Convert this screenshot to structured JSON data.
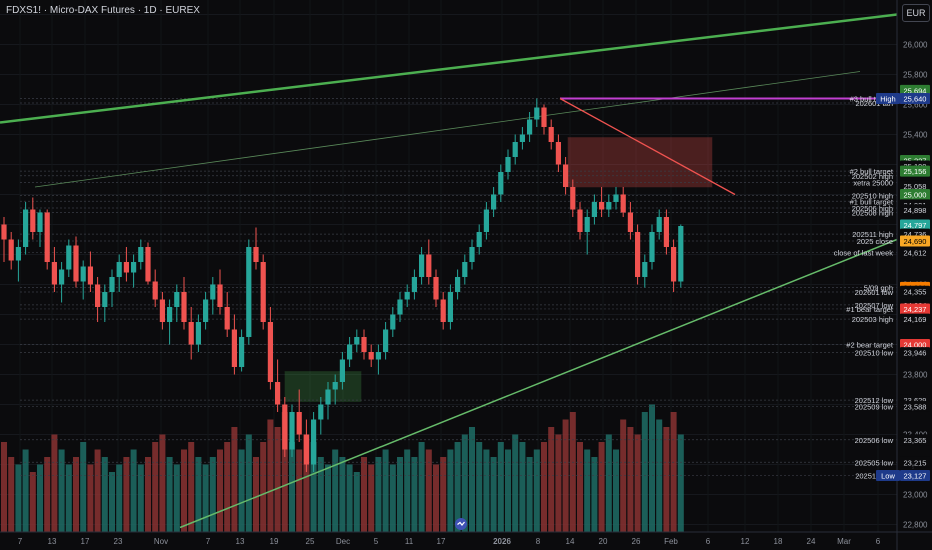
{
  "header": {
    "title": "FDXS1! · Micro-DAX Futures · 1D · EUREX",
    "currency": "EUR"
  },
  "price_axis": {
    "ticks": [
      "26,200",
      "26,000",
      "25,800",
      "25,600",
      "25,400",
      "25,200",
      "25,000",
      "24,800",
      "24,600",
      "24,400",
      "24,200",
      "24,000",
      "23,800",
      "23,600",
      "23,400",
      "23,200",
      "23,000",
      "22,800"
    ],
    "tick_values": [
      26200,
      26000,
      25800,
      25600,
      25400,
      25200,
      25000,
      24800,
      24600,
      24400,
      24200,
      24000,
      23800,
      23600,
      23400,
      23200,
      23000,
      22800
    ]
  },
  "time_axis": {
    "labels": [
      "7",
      "13",
      "17",
      "23",
      "Nov",
      "7",
      "13",
      "19",
      "25",
      "Dec",
      "5",
      "11",
      "17",
      "2026",
      "8",
      "14",
      "20",
      "26",
      "Feb",
      "6",
      "12",
      "18",
      "24",
      "Mar",
      "6"
    ]
  },
  "badges": [
    {
      "text": "25,694",
      "value": 25694,
      "bg": "#2e7d32",
      "fg": "#ffffff"
    },
    {
      "text": "25,640",
      "value": 25640,
      "bg": "#c2185b",
      "fg": "#ffffff"
    },
    {
      "text": "High",
      "value": 25640,
      "bg": "#1e3a8a",
      "fg": "#ffffff"
    },
    {
      "text": "25,640",
      "value": 25640,
      "bg": "#1e3a8a",
      "fg": "#ffffff"
    },
    {
      "text": "25,227",
      "value": 25227,
      "bg": "#2e7d32",
      "fg": "#ffffff"
    },
    {
      "text": "25,190",
      "value": 25190,
      "bg": "#0b0b0d",
      "fg": "#d1d4dc"
    },
    {
      "text": "25,156",
      "value": 25156,
      "bg": "#2e7d32",
      "fg": "#ffffff"
    },
    {
      "text": "25,058",
      "value": 25058,
      "bg": "#0b0b0d",
      "fg": "#d1d4dc"
    },
    {
      "text": "25,000",
      "value": 25000,
      "bg": "#2e7d32",
      "fg": "#ffffff"
    },
    {
      "text": "24,931",
      "value": 24931,
      "bg": "#0b0b0d",
      "fg": "#d1d4dc"
    },
    {
      "text": "24,898",
      "value": 24898,
      "bg": "#0b0b0d",
      "fg": "#d1d4dc"
    },
    {
      "text": "24,797",
      "value": 24797,
      "bg": "#26a69a",
      "fg": "#ffffff"
    },
    {
      "text": "24,736",
      "value": 24736,
      "bg": "#0b0b0d",
      "fg": "#d1d4dc"
    },
    {
      "text": "24,690",
      "value": 24690,
      "bg": "#f9a825",
      "fg": "#000000"
    },
    {
      "text": "24,612",
      "value": 24612,
      "bg": "#0b0b0d",
      "fg": "#d1d4dc"
    },
    {
      "text": "24,381",
      "value": 24381,
      "bg": "#f57c00",
      "fg": "#000000"
    },
    {
      "text": "24,355",
      "value": 24355,
      "bg": "#0b0b0d",
      "fg": "#d1d4dc"
    },
    {
      "text": "24,264",
      "value": 24264,
      "bg": "#0b0b0d",
      "fg": "#d1d4dc"
    },
    {
      "text": "24,237",
      "value": 24237,
      "bg": "#e53935",
      "fg": "#ffffff"
    },
    {
      "text": "24,169",
      "value": 24169,
      "bg": "#0b0b0d",
      "fg": "#d1d4dc"
    },
    {
      "text": "24,000",
      "value": 24000,
      "bg": "#e53935",
      "fg": "#ffffff"
    },
    {
      "text": "23,946",
      "value": 23946,
      "bg": "#0b0b0d",
      "fg": "#d1d4dc"
    },
    {
      "text": "23,629",
      "value": 23629,
      "bg": "#0b0b0d",
      "fg": "#d1d4dc"
    },
    {
      "text": "23,588",
      "value": 23588,
      "bg": "#0b0b0d",
      "fg": "#d1d4dc"
    },
    {
      "text": "23,365",
      "value": 23365,
      "bg": "#0b0b0d",
      "fg": "#d1d4dc"
    },
    {
      "text": "23,215",
      "value": 23215,
      "bg": "#0b0b0d",
      "fg": "#d1d4dc"
    },
    {
      "text": "Low",
      "value": 23127,
      "bg": "#1e3a8a",
      "fg": "#ffffff"
    },
    {
      "text": "23,127",
      "value": 23127,
      "bg": "#1e3a8a",
      "fg": "#ffffff"
    }
  ],
  "level_labels": [
    {
      "text": "#3 bull target",
      "value": 25640
    },
    {
      "text": "202601 ath",
      "value": 25610
    },
    {
      "text": "#2 bull target",
      "value": 25156
    },
    {
      "text": "202502 high",
      "value": 25125
    },
    {
      "text": "xetra 25000",
      "value": 25080
    },
    {
      "text": "202510 high",
      "value": 24994
    },
    {
      "text": "#1 bull target",
      "value": 24955
    },
    {
      "text": "202506 high",
      "value": 24910
    },
    {
      "text": "202508 high",
      "value": 24880
    },
    {
      "text": "202511 high",
      "value": 24736
    },
    {
      "text": "2025 close",
      "value": 24690
    },
    {
      "text": "close of last week",
      "value": 24612
    },
    {
      "text": "5/09 gph",
      "value": 24380
    },
    {
      "text": "202601 low",
      "value": 24350
    },
    {
      "text": "202507 low",
      "value": 24264
    },
    {
      "text": "#1 bear target",
      "value": 24237
    },
    {
      "text": "202503 high",
      "value": 24169
    },
    {
      "text": "#2 bear target",
      "value": 24000
    },
    {
      "text": "202510 low",
      "value": 23946
    },
    {
      "text": "202512 low",
      "value": 23629
    },
    {
      "text": "202509 low",
      "value": 23588
    },
    {
      "text": "202506 low",
      "value": 23365
    },
    {
      "text": "202505 low",
      "value": 23215
    },
    {
      "text": "202511 low",
      "value": 23127
    }
  ],
  "colors": {
    "up": "#26a69a",
    "down": "#ef5350",
    "trendline": "#4caf50",
    "ath_line": "#c23fd1",
    "channel_top": "#ef5350"
  },
  "chart_data": {
    "type": "candlestick",
    "symbol": "FDXS1!",
    "interval": "1D",
    "y_range": [
      22750,
      26270
    ],
    "ohlc": [
      [
        24800,
        24850,
        24550,
        24700
      ],
      [
        24700,
        24750,
        24500,
        24560
      ],
      [
        24560,
        24700,
        24420,
        24650
      ],
      [
        24650,
        24950,
        24600,
        24900
      ],
      [
        24900,
        24980,
        24700,
        24750
      ],
      [
        24750,
        24900,
        24650,
        24880
      ],
      [
        24880,
        24900,
        24500,
        24550
      ],
      [
        24550,
        24650,
        24350,
        24400
      ],
      [
        24400,
        24550,
        24280,
        24500
      ],
      [
        24500,
        24700,
        24450,
        24660
      ],
      [
        24660,
        24720,
        24380,
        24420
      ],
      [
        24420,
        24560,
        24300,
        24520
      ],
      [
        24520,
        24620,
        24350,
        24400
      ],
      [
        24400,
        24450,
        24150,
        24250
      ],
      [
        24250,
        24400,
        24150,
        24350
      ],
      [
        24350,
        24500,
        24250,
        24450
      ],
      [
        24450,
        24600,
        24350,
        24550
      ],
      [
        24550,
        24650,
        24420,
        24480
      ],
      [
        24480,
        24600,
        24380,
        24550
      ],
      [
        24550,
        24700,
        24500,
        24650
      ],
      [
        24650,
        24680,
        24400,
        24420
      ],
      [
        24420,
        24500,
        24250,
        24300
      ],
      [
        24300,
        24350,
        24100,
        24150
      ],
      [
        24150,
        24300,
        24000,
        24250
      ],
      [
        24250,
        24400,
        24150,
        24350
      ],
      [
        24350,
        24450,
        24100,
        24150
      ],
      [
        24150,
        24250,
        23900,
        24000
      ],
      [
        24000,
        24200,
        23950,
        24150
      ],
      [
        24150,
        24350,
        24100,
        24300
      ],
      [
        24300,
        24450,
        24200,
        24400
      ],
      [
        24400,
        24500,
        24200,
        24250
      ],
      [
        24250,
        24350,
        24050,
        24100
      ],
      [
        24100,
        24200,
        23800,
        23850
      ],
      [
        23850,
        24100,
        23820,
        24050
      ],
      [
        24050,
        24700,
        24000,
        24650
      ],
      [
        24650,
        24780,
        24500,
        24550
      ],
      [
        24550,
        24600,
        24100,
        24150
      ],
      [
        24150,
        24250,
        23700,
        23750
      ],
      [
        23750,
        23900,
        23550,
        23600
      ],
      [
        23600,
        23650,
        23250,
        23300
      ],
      [
        23300,
        23600,
        23250,
        23550
      ],
      [
        23550,
        23700,
        23350,
        23400
      ],
      [
        23400,
        23500,
        23150,
        23200
      ],
      [
        23200,
        23550,
        23150,
        23500
      ],
      [
        23500,
        23650,
        23400,
        23600
      ],
      [
        23600,
        23750,
        23500,
        23700
      ],
      [
        23700,
        23800,
        23600,
        23750
      ],
      [
        23750,
        23950,
        23700,
        23900
      ],
      [
        23900,
        24050,
        23850,
        24000
      ],
      [
        24000,
        24100,
        23950,
        24050
      ],
      [
        24050,
        24100,
        23900,
        23950
      ],
      [
        23950,
        24000,
        23850,
        23900
      ],
      [
        23900,
        24000,
        23800,
        23950
      ],
      [
        23950,
        24150,
        23900,
        24100
      ],
      [
        24100,
        24250,
        24050,
        24200
      ],
      [
        24200,
        24350,
        24150,
        24300
      ],
      [
        24300,
        24400,
        24250,
        24350
      ],
      [
        24350,
        24500,
        24300,
        24450
      ],
      [
        24450,
        24650,
        24400,
        24600
      ],
      [
        24600,
        24700,
        24400,
        24450
      ],
      [
        24450,
        24500,
        24250,
        24300
      ],
      [
        24300,
        24350,
        24100,
        24150
      ],
      [
        24150,
        24400,
        24100,
        24350
      ],
      [
        24350,
        24500,
        24300,
        24450
      ],
      [
        24450,
        24600,
        24400,
        24550
      ],
      [
        24550,
        24700,
        24500,
        24650
      ],
      [
        24650,
        24800,
        24600,
        24750
      ],
      [
        24750,
        24950,
        24700,
        24900
      ],
      [
        24900,
        25050,
        24850,
        25000
      ],
      [
        25000,
        25200,
        24950,
        25150
      ],
      [
        25150,
        25300,
        25100,
        25250
      ],
      [
        25250,
        25400,
        25200,
        25350
      ],
      [
        25350,
        25450,
        25300,
        25400
      ],
      [
        25400,
        25550,
        25350,
        25500
      ],
      [
        25500,
        25640,
        25450,
        25580
      ],
      [
        25580,
        25600,
        25400,
        25450
      ],
      [
        25450,
        25500,
        25300,
        25350
      ],
      [
        25350,
        25400,
        25150,
        25200
      ],
      [
        25200,
        25250,
        25000,
        25050
      ],
      [
        25050,
        25100,
        24850,
        24900
      ],
      [
        24900,
        24950,
        24700,
        24750
      ],
      [
        24750,
        24900,
        24600,
        24850
      ],
      [
        24850,
        25000,
        24800,
        24950
      ],
      [
        24950,
        25050,
        24850,
        24900
      ],
      [
        24900,
        25000,
        24850,
        24950
      ],
      [
        24950,
        25050,
        24900,
        25000
      ],
      [
        25000,
        25050,
        24850,
        24880
      ],
      [
        24880,
        24950,
        24700,
        24750
      ],
      [
        24750,
        24800,
        24400,
        24450
      ],
      [
        24450,
        24600,
        24380,
        24550
      ],
      [
        24550,
        24800,
        24500,
        24750
      ],
      [
        24750,
        24900,
        24700,
        24850
      ],
      [
        24850,
        24900,
        24600,
        24650
      ],
      [
        24650,
        24700,
        24350,
        24420
      ],
      [
        24420,
        24800,
        24380,
        24790
      ]
    ],
    "volume": [
      1.2,
      1.0,
      0.9,
      1.1,
      0.8,
      0.9,
      1.0,
      1.3,
      1.1,
      0.9,
      1.0,
      1.2,
      0.9,
      1.1,
      1.0,
      0.8,
      0.9,
      1.0,
      1.1,
      0.9,
      1.0,
      1.2,
      1.3,
      1.0,
      0.9,
      1.1,
      1.2,
      1.0,
      0.9,
      1.0,
      1.1,
      1.2,
      1.4,
      1.1,
      1.3,
      1.0,
      1.2,
      1.5,
      1.4,
      1.6,
      1.2,
      1.1,
      1.3,
      1.2,
      1.0,
      0.9,
      1.1,
      1.0,
      0.9,
      0.8,
      1.0,
      0.9,
      1.0,
      1.1,
      0.9,
      1.0,
      1.1,
      1.0,
      1.2,
      1.1,
      0.9,
      1.0,
      1.1,
      1.2,
      1.3,
      1.4,
      1.2,
      1.1,
      1.0,
      1.2,
      1.1,
      1.3,
      1.2,
      1.0,
      1.1,
      1.2,
      1.4,
      1.3,
      1.5,
      1.6,
      1.2,
      1.1,
      1.0,
      1.2,
      1.3,
      1.1,
      1.5,
      1.4,
      1.3,
      1.6,
      1.7,
      1.5,
      1.4,
      1.6,
      1.3
    ]
  }
}
